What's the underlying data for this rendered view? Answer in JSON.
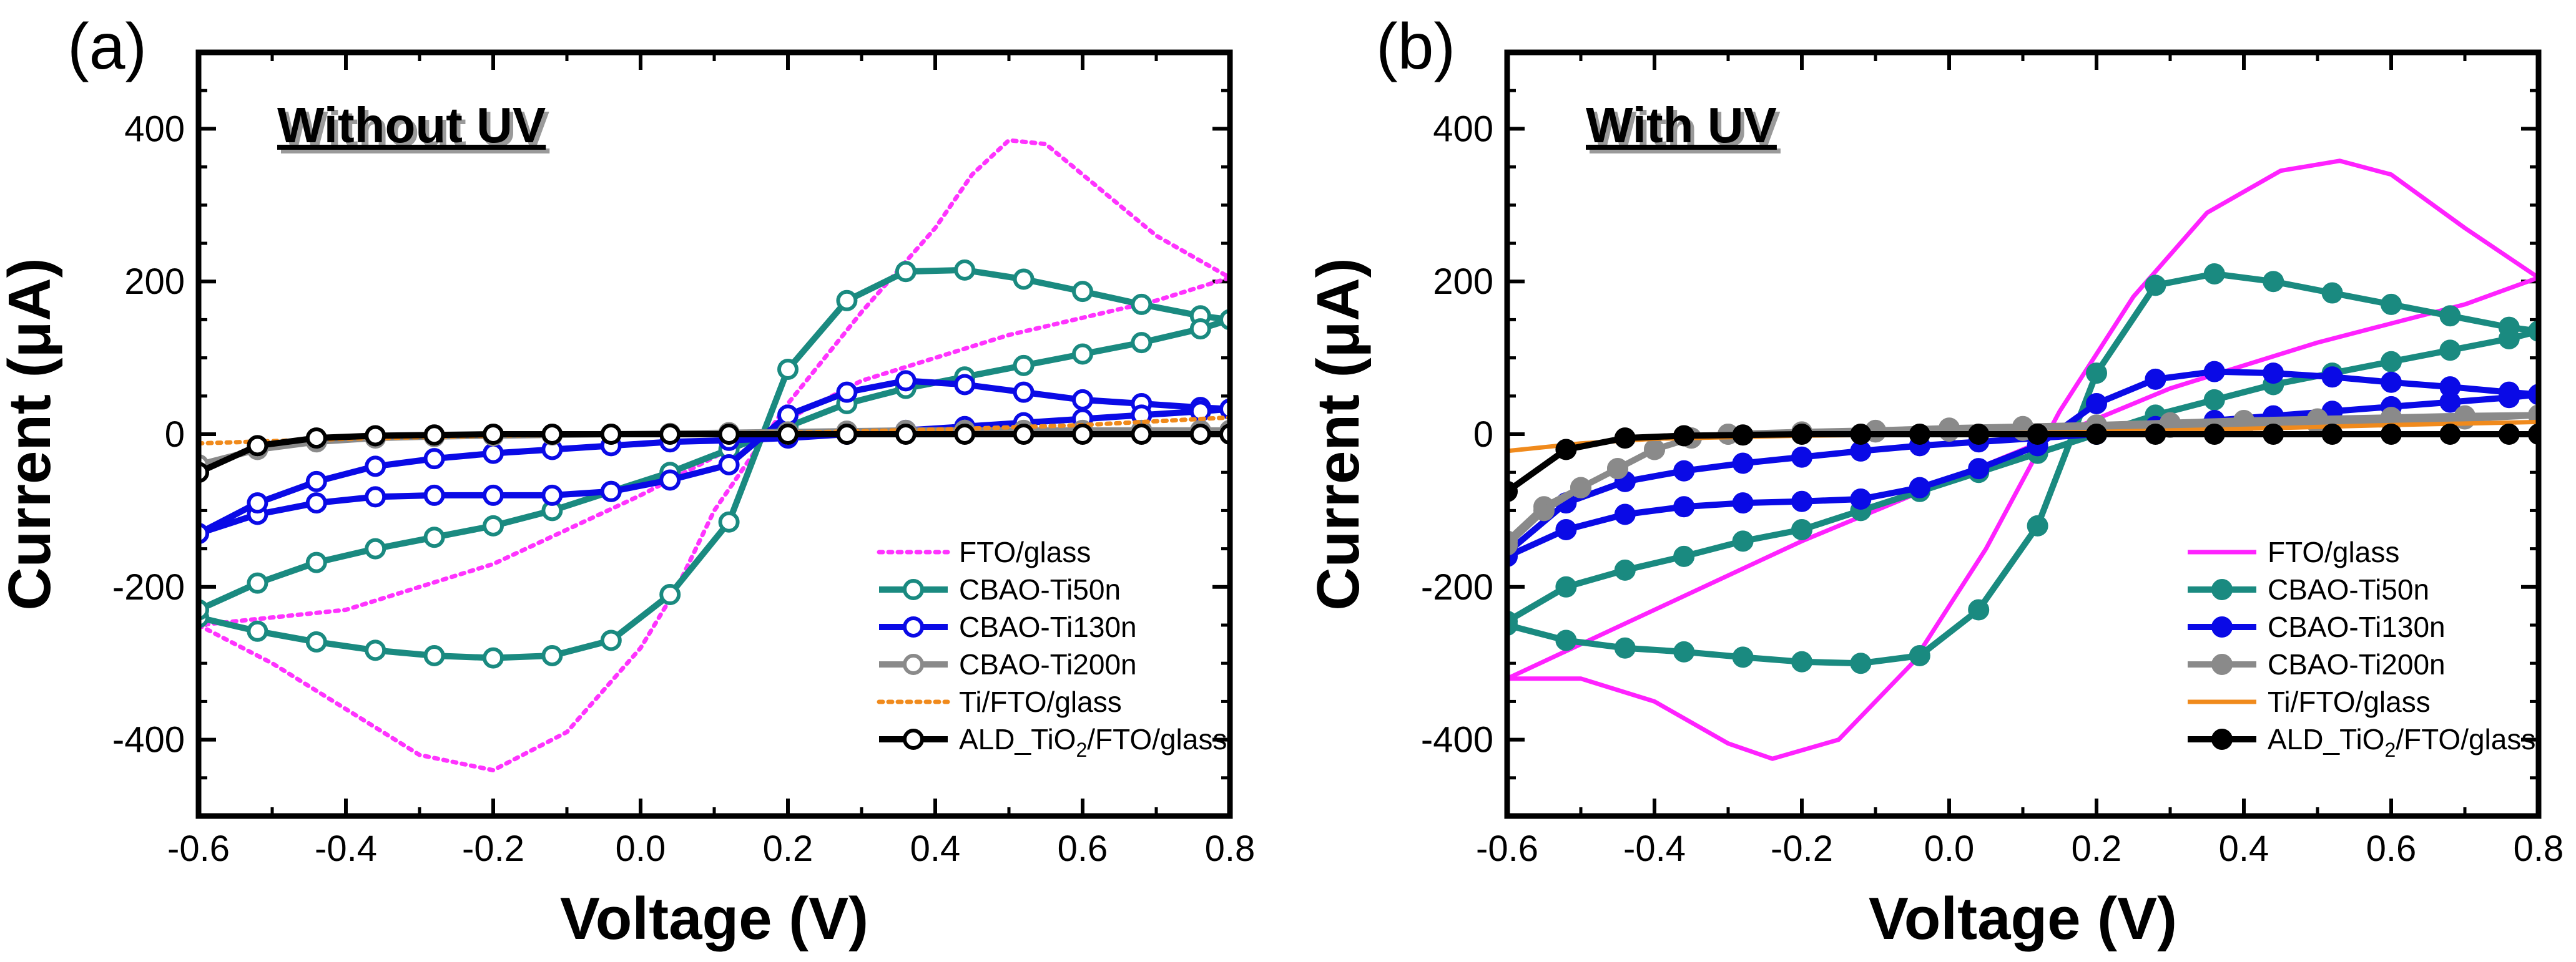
{
  "chart_data": [
    {
      "panel_label": "(a)",
      "type": "line",
      "annotation": "Without UV",
      "xlabel": "Voltage (V)",
      "ylabel": "Current (μA)",
      "xlim": [
        -0.6,
        0.8
      ],
      "ylim": [
        -500,
        500
      ],
      "xticks": [
        -0.6,
        -0.4,
        -0.2,
        0.0,
        0.2,
        0.4,
        0.6,
        0.8
      ],
      "yticks": [
        -400,
        -200,
        0,
        200,
        400
      ],
      "xtick_labels": [
        "-0.6",
        "-0.4",
        "-0.2",
        "0.0",
        "0.2",
        "0.4",
        "0.6",
        "0.8"
      ],
      "ytick_labels": [
        "-400",
        "-200",
        "0",
        "200",
        "400"
      ],
      "legend": "bottom-right",
      "series": [
        {
          "name": "FTO/glass",
          "legend_main": "FTO/glass",
          "legend_sub": "",
          "legend_tail": "",
          "color": "#ff33ff",
          "style": "dotted",
          "marker": "none",
          "x": [
            -0.6,
            -0.5,
            -0.4,
            -0.3,
            -0.2,
            -0.1,
            0.0,
            0.05,
            0.1,
            0.2,
            0.3,
            0.4,
            0.45,
            0.5,
            0.55,
            0.6,
            0.7,
            0.8,
            0.7,
            0.5,
            0.3,
            0.2,
            0.1,
            0.0,
            -0.2,
            -0.4,
            -0.6
          ],
          "y": [
            -250,
            -300,
            -360,
            -420,
            -440,
            -390,
            -280,
            -200,
            -100,
            40,
            160,
            270,
            340,
            385,
            380,
            340,
            260,
            205,
            175,
            130,
            70,
            20,
            -30,
            -80,
            -170,
            -230,
            -250
          ]
        },
        {
          "name": "CBAO-Ti50n",
          "legend_main": "CBAO-Ti50n",
          "legend_sub": "",
          "legend_tail": "",
          "color": "#1a8a80",
          "style": "solid",
          "marker": "open",
          "x": [
            -0.6,
            -0.52,
            -0.44,
            -0.36,
            -0.28,
            -0.2,
            -0.12,
            -0.04,
            0.04,
            0.12,
            0.2,
            0.28,
            0.36,
            0.44,
            0.52,
            0.6,
            0.68,
            0.76,
            0.8,
            0.76,
            0.68,
            0.6,
            0.52,
            0.44,
            0.36,
            0.28,
            0.2,
            0.12,
            0.04,
            -0.04,
            -0.12,
            -0.2,
            -0.28,
            -0.36,
            -0.44,
            -0.52,
            -0.6
          ],
          "y": [
            -240,
            -258,
            -272,
            -283,
            -290,
            -293,
            -290,
            -270,
            -210,
            -115,
            85,
            175,
            213,
            215,
            203,
            187,
            170,
            155,
            150,
            138,
            120,
            105,
            90,
            75,
            60,
            40,
            10,
            -20,
            -50,
            -75,
            -100,
            -120,
            -135,
            -150,
            -168,
            -195,
            -230
          ]
        },
        {
          "name": "CBAO-Ti130n",
          "legend_main": "CBAO-Ti130n",
          "legend_sub": "",
          "legend_tail": "",
          "color": "#0a0ae6",
          "style": "solid",
          "marker": "open",
          "x": [
            -0.6,
            -0.52,
            -0.44,
            -0.36,
            -0.28,
            -0.2,
            -0.12,
            -0.04,
            0.04,
            0.12,
            0.2,
            0.28,
            0.36,
            0.44,
            0.52,
            0.6,
            0.68,
            0.76,
            0.8,
            0.76,
            0.68,
            0.6,
            0.52,
            0.44,
            0.36,
            0.28,
            0.2,
            0.12,
            0.04,
            -0.04,
            -0.12,
            -0.2,
            -0.28,
            -0.36,
            -0.44,
            -0.52,
            -0.6
          ],
          "y": [
            -130,
            -105,
            -90,
            -82,
            -80,
            -80,
            -80,
            -75,
            -60,
            -40,
            25,
            55,
            70,
            65,
            55,
            45,
            40,
            35,
            33,
            30,
            25,
            20,
            15,
            10,
            5,
            0,
            -5,
            -8,
            -10,
            -15,
            -20,
            -25,
            -32,
            -42,
            -62,
            -90,
            -130
          ]
        },
        {
          "name": "CBAO-Ti200n",
          "legend_main": "CBAO-Ti200n",
          "legend_sub": "",
          "legend_tail": "",
          "color": "#8a8a8a",
          "style": "solid",
          "marker": "open",
          "x": [
            -0.6,
            -0.52,
            -0.44,
            -0.36,
            -0.28,
            -0.2,
            -0.12,
            -0.04,
            0.04,
            0.12,
            0.2,
            0.28,
            0.36,
            0.44,
            0.52,
            0.6,
            0.68,
            0.76,
            0.8
          ],
          "y": [
            -40,
            -20,
            -10,
            -5,
            -3,
            -2,
            -1,
            0,
            1,
            2,
            3,
            4,
            5,
            5,
            5,
            5,
            5,
            5,
            5
          ]
        },
        {
          "name": "Ti/FTO/glass",
          "legend_main": "Ti/FTO/glass",
          "legend_sub": "",
          "legend_tail": "",
          "color": "#f08a1c",
          "style": "dotted",
          "marker": "none",
          "x": [
            -0.6,
            -0.4,
            -0.2,
            0.0,
            0.2,
            0.4,
            0.6,
            0.8
          ],
          "y": [
            -12,
            -6,
            -2,
            0,
            2,
            6,
            12,
            22
          ]
        },
        {
          "name": "ALD_TiO2/FTO/glass",
          "legend_main": "ALD_TiO",
          "legend_sub": "2",
          "legend_tail": "/FTO/glass",
          "color": "#000000",
          "style": "solid",
          "marker": "open",
          "x": [
            -0.6,
            -0.52,
            -0.44,
            -0.36,
            -0.28,
            -0.2,
            -0.12,
            -0.04,
            0.04,
            0.12,
            0.2,
            0.28,
            0.36,
            0.44,
            0.52,
            0.6,
            0.68,
            0.76,
            0.8
          ],
          "y": [
            -50,
            -15,
            -5,
            -2,
            -1,
            0,
            0,
            0,
            0,
            0,
            0,
            0,
            0,
            0,
            0,
            0,
            0,
            0,
            0
          ]
        }
      ]
    },
    {
      "panel_label": "(b)",
      "type": "line",
      "annotation": "With UV",
      "xlabel": "Voltage (V)",
      "ylabel": "Current (μA)",
      "xlim": [
        -0.6,
        0.8
      ],
      "ylim": [
        -500,
        500
      ],
      "xticks": [
        -0.6,
        -0.4,
        -0.2,
        0.0,
        0.2,
        0.4,
        0.6,
        0.8
      ],
      "yticks": [
        -400,
        -200,
        0,
        200,
        400
      ],
      "xtick_labels": [
        "-0.6",
        "-0.4",
        "-0.2",
        "0.0",
        "0.2",
        "0.4",
        "0.6",
        "0.8"
      ],
      "ytick_labels": [
        "-400",
        "-200",
        "0",
        "200",
        "400"
      ],
      "legend": "bottom-right",
      "series": [
        {
          "name": "FTO/glass",
          "legend_main": "FTO/glass",
          "legend_sub": "",
          "legend_tail": "",
          "color": "#ff22ff",
          "style": "solid",
          "marker": "none",
          "x": [
            -0.6,
            -0.5,
            -0.4,
            -0.3,
            -0.24,
            -0.15,
            -0.05,
            0.05,
            0.15,
            0.25,
            0.35,
            0.45,
            0.53,
            0.6,
            0.7,
            0.8,
            0.7,
            0.5,
            0.3,
            0.2,
            0.1,
            0.0,
            -0.2,
            -0.4,
            -0.6
          ],
          "y": [
            -320,
            -320,
            -350,
            -405,
            -425,
            -400,
            -300,
            -150,
            30,
            180,
            290,
            345,
            358,
            340,
            270,
            205,
            170,
            120,
            60,
            20,
            -20,
            -60,
            -140,
            -230,
            -320
          ]
        },
        {
          "name": "CBAO-Ti50n",
          "legend_main": "CBAO-Ti50n",
          "legend_sub": "",
          "legend_tail": "",
          "color": "#1a8a80",
          "style": "solid",
          "marker": "filled",
          "x": [
            -0.6,
            -0.52,
            -0.44,
            -0.36,
            -0.28,
            -0.2,
            -0.12,
            -0.04,
            0.04,
            0.12,
            0.2,
            0.28,
            0.36,
            0.44,
            0.52,
            0.6,
            0.68,
            0.76,
            0.8,
            0.76,
            0.68,
            0.6,
            0.52,
            0.44,
            0.36,
            0.28,
            0.2,
            0.12,
            0.04,
            -0.04,
            -0.12,
            -0.2,
            -0.28,
            -0.36,
            -0.44,
            -0.52,
            -0.6
          ],
          "y": [
            -250,
            -270,
            -280,
            -285,
            -292,
            -298,
            -300,
            -290,
            -230,
            -120,
            80,
            195,
            210,
            200,
            185,
            170,
            155,
            140,
            135,
            125,
            110,
            95,
            80,
            65,
            45,
            25,
            0,
            -25,
            -50,
            -75,
            -100,
            -125,
            -140,
            -160,
            -178,
            -200,
            -245
          ]
        },
        {
          "name": "CBAO-Ti130n",
          "legend_main": "CBAO-Ti130n",
          "legend_sub": "",
          "legend_tail": "",
          "color": "#0a0ae6",
          "style": "solid",
          "marker": "filled",
          "x": [
            -0.6,
            -0.52,
            -0.44,
            -0.36,
            -0.28,
            -0.2,
            -0.12,
            -0.04,
            0.04,
            0.12,
            0.2,
            0.28,
            0.36,
            0.44,
            0.52,
            0.6,
            0.68,
            0.76,
            0.8,
            0.76,
            0.68,
            0.6,
            0.52,
            0.44,
            0.36,
            0.28,
            0.2,
            0.12,
            0.04,
            -0.04,
            -0.12,
            -0.2,
            -0.28,
            -0.36,
            -0.44,
            -0.52,
            -0.6
          ],
          "y": [
            -160,
            -125,
            -105,
            -95,
            -90,
            -88,
            -85,
            -70,
            -45,
            -15,
            40,
            72,
            82,
            80,
            75,
            68,
            62,
            55,
            52,
            48,
            42,
            36,
            30,
            24,
            18,
            10,
            0,
            -5,
            -10,
            -15,
            -22,
            -30,
            -38,
            -48,
            -62,
            -90,
            -155
          ]
        },
        {
          "name": "CBAO-Ti200n",
          "legend_main": "CBAO-Ti200n",
          "legend_sub": "",
          "legend_tail": "",
          "color": "#8a8a8a",
          "style": "solid",
          "marker": "filled",
          "x": [
            -0.6,
            -0.55,
            -0.5,
            -0.45,
            -0.4,
            -0.35,
            -0.3,
            -0.2,
            -0.1,
            0.0,
            0.1,
            0.2,
            0.3,
            0.4,
            0.5,
            0.6,
            0.7,
            0.8,
            0.7,
            0.6,
            0.5,
            0.4,
            0.3,
            0.2,
            0.1,
            0.0,
            -0.1,
            -0.2,
            -0.3,
            -0.35,
            -0.4,
            -0.45,
            -0.5,
            -0.55,
            -0.6
          ],
          "y": [
            -140,
            -95,
            -70,
            -45,
            -20,
            -5,
            0,
            3,
            5,
            8,
            10,
            12,
            15,
            18,
            20,
            22,
            24,
            25,
            20,
            16,
            13,
            11,
            9,
            7,
            5,
            4,
            3,
            2,
            0,
            -5,
            -20,
            -45,
            -70,
            -100,
            -145
          ]
        },
        {
          "name": "Ti/FTO/glass",
          "legend_main": "Ti/FTO/glass",
          "legend_sub": "",
          "legend_tail": "",
          "color": "#f08a1c",
          "style": "solid",
          "marker": "none",
          "x": [
            -0.6,
            -0.5,
            -0.4,
            -0.2,
            0.0,
            0.2,
            0.4,
            0.6,
            0.8
          ],
          "y": [
            -22,
            -12,
            -6,
            -2,
            0,
            3,
            7,
            12,
            16
          ]
        },
        {
          "name": "ALD_TiO2/FTO/glass",
          "legend_main": "ALD_TiO",
          "legend_sub": "2",
          "legend_tail": "/FTO/glass",
          "color": "#000000",
          "style": "solid",
          "marker": "filled",
          "x": [
            -0.6,
            -0.52,
            -0.44,
            -0.36,
            -0.28,
            -0.2,
            -0.12,
            -0.04,
            0.04,
            0.12,
            0.2,
            0.28,
            0.36,
            0.44,
            0.52,
            0.6,
            0.68,
            0.76,
            0.8
          ],
          "y": [
            -75,
            -20,
            -5,
            -2,
            -1,
            0,
            0,
            0,
            0,
            0,
            0,
            0,
            0,
            0,
            0,
            0,
            0,
            0,
            0
          ]
        }
      ]
    }
  ]
}
